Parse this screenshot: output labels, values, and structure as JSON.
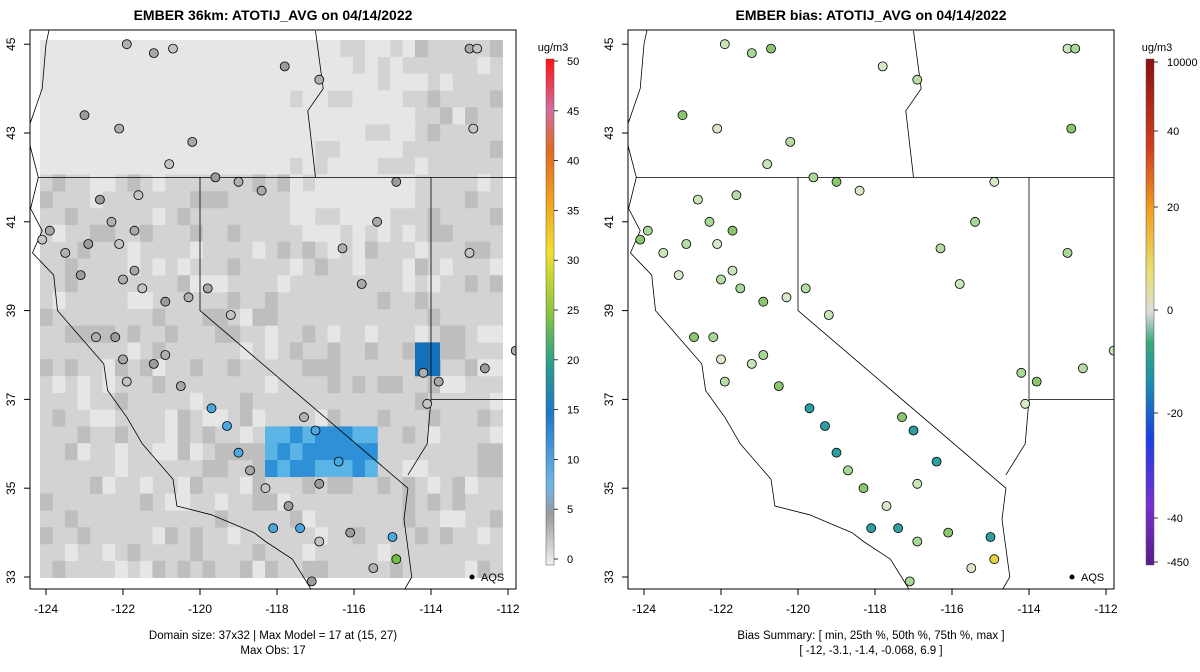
{
  "left_panel": {
    "title": "EMBER 36km: ATOTIJ_AVG on 04/14/2022",
    "caption_line1": "Domain size: 37x32 | Max Model = 17 at (15, 27)",
    "caption_line2": "Max Obs: 17",
    "x_ticks": [
      "-124",
      "-122",
      "-120",
      "-118",
      "-116",
      "-114",
      "-112"
    ],
    "y_ticks": [
      "33",
      "35",
      "37",
      "39",
      "41",
      "43",
      "45"
    ],
    "colorbar_unit": "ug/m3",
    "colorbar_labels": [
      "0",
      "5",
      "10",
      "15",
      "20",
      "25",
      "30",
      "35",
      "40",
      "45",
      "50"
    ],
    "aqs_label": "AQS",
    "colors": {
      "grid_base": "#d3d3d3",
      "grid_light": "#e6e6e6",
      "grid_dark": "#bebebe",
      "blue_light": "#5ab4e6",
      "blue_mid": "#2e90d6",
      "blue_dark": "#1470b8"
    }
  },
  "right_panel": {
    "title": "EMBER bias: ATOTIJ_AVG on 04/14/2022",
    "caption_line1": "Bias Summary: [ min, 25th %, 50th %, 75th %, max ]",
    "caption_line2": "[ -12,  -3.1,  -1.4,  -0.068,  6.9 ]",
    "x_ticks": [
      "-124",
      "-122",
      "-120",
      "-118",
      "-116",
      "-114",
      "-112"
    ],
    "y_ticks": [
      "33",
      "35",
      "37",
      "39",
      "41",
      "43",
      "45"
    ],
    "colorbar_unit": "ug/m3",
    "colorbar_labels": [
      "10000",
      "40",
      "20",
      "0",
      "-20",
      "-40",
      "-450"
    ],
    "aqs_label": "AQS",
    "bias_summary": {
      "min": -12,
      "p25": -3.1,
      "p50": -1.4,
      "p75": -0.068,
      "max": 6.9
    }
  }
}
